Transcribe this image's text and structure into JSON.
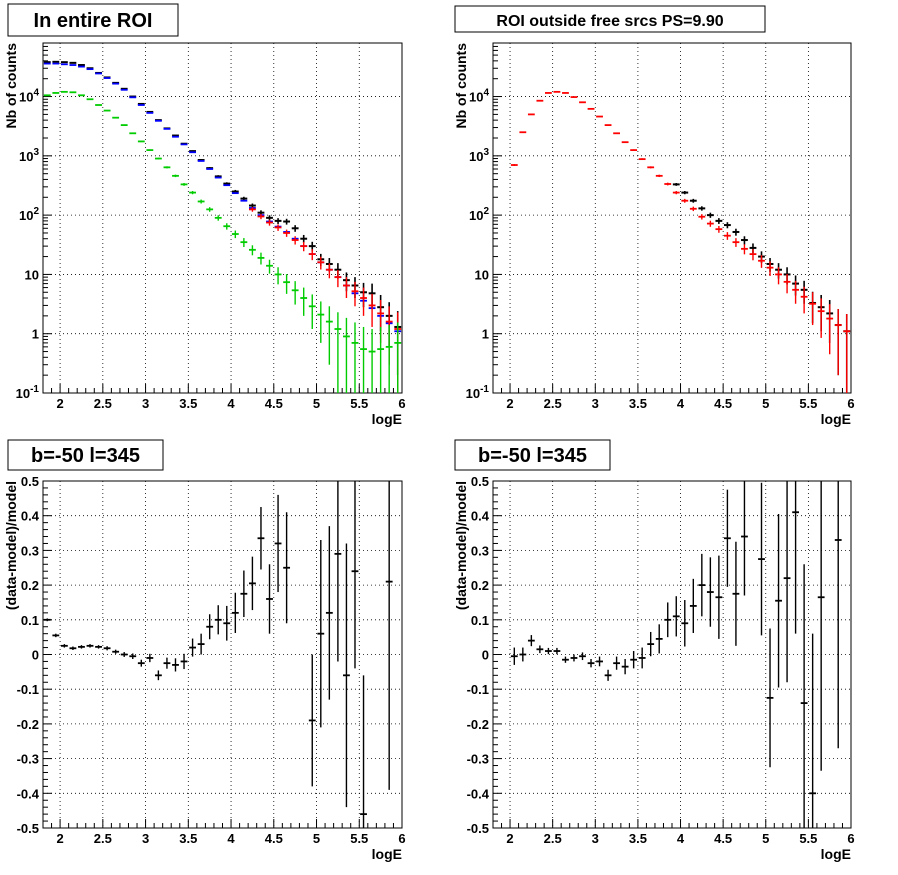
{
  "chart_data": [
    {
      "type": "scatter",
      "title": "In entire ROI",
      "xlabel": "logE",
      "ylabel": "Nb of counts",
      "xlim": [
        1.8,
        6.0
      ],
      "ylim": [
        0.1,
        80000
      ],
      "yscale": "log",
      "grid": true,
      "xticks": [
        "2",
        "2.5",
        "3",
        "3.5",
        "4",
        "4.5",
        "5",
        "5.5",
        "6"
      ],
      "yticks": [
        "10^-1",
        "1",
        "10",
        "10^2",
        "10^3",
        "10^4"
      ],
      "series": [
        {
          "color": "#000000",
          "x": [
            1.85,
            1.95,
            2.05,
            2.15,
            2.25,
            2.35,
            2.45,
            2.55,
            2.65,
            2.75,
            2.85,
            2.95,
            3.05,
            3.15,
            3.25,
            3.35,
            3.45,
            3.55,
            3.65,
            3.75,
            3.85,
            3.95,
            4.05,
            4.15,
            4.25,
            4.35,
            4.45,
            4.55,
            4.65,
            4.75,
            4.85,
            4.95,
            5.05,
            5.15,
            5.25,
            5.35,
            5.45,
            5.55,
            5.65,
            5.75,
            5.85,
            5.95
          ],
          "y": [
            38000,
            38500,
            38000,
            37000,
            34000,
            30000,
            25000,
            21000,
            17000,
            13500,
            10000,
            7500,
            5500,
            4000,
            2900,
            2200,
            1600,
            1200,
            850,
            620,
            450,
            340,
            250,
            190,
            145,
            110,
            90,
            80,
            78,
            60,
            40,
            30,
            18,
            15,
            12,
            8,
            6.5,
            5,
            4.8,
            2.8,
            2,
            1.3
          ],
          "err": [
            190,
            195,
            195,
            190,
            180,
            170,
            155,
            145,
            130,
            115,
            100,
            85,
            75,
            63,
            54,
            47,
            40,
            35,
            29,
            25,
            21,
            18,
            16,
            14,
            12,
            10.5,
            9.5,
            9,
            8.8,
            7.7,
            6.3,
            5.5,
            4.2,
            3.9,
            3.5,
            2.8,
            2.5,
            2.2,
            2.2,
            1.7,
            1.4,
            1.1
          ]
        },
        {
          "color": "#0000ff",
          "x": [
            1.85,
            1.95,
            2.05,
            2.15,
            2.25,
            2.35,
            2.45,
            2.55,
            2.65,
            2.75,
            2.85,
            2.95,
            3.05,
            3.15,
            3.25,
            3.35,
            3.45,
            3.55,
            3.65,
            3.75,
            3.85,
            3.95,
            4.05,
            4.15,
            4.25,
            4.35,
            4.45,
            4.55,
            4.65,
            4.75,
            4.85,
            4.95,
            5.05,
            5.15,
            5.25,
            5.35,
            5.45,
            5.55,
            5.65,
            5.75,
            5.85,
            5.95
          ],
          "y": [
            36000,
            36000,
            35000,
            34000,
            32000,
            29000,
            24500,
            20500,
            16500,
            13000,
            9700,
            7200,
            5300,
            3900,
            2850,
            2100,
            1560,
            1150,
            820,
            600,
            430,
            320,
            235,
            175,
            132,
            100,
            78,
            64,
            52,
            40,
            30,
            22,
            16,
            12,
            9,
            6.5,
            4.8,
            3.6,
            2.7,
            2,
            1.5,
            1.1
          ]
        },
        {
          "color": "#ff0000",
          "x": [
            4.25,
            4.35,
            4.45,
            4.55,
            4.65,
            4.75,
            4.85,
            4.95,
            5.05,
            5.15,
            5.25,
            5.35,
            5.45,
            5.55,
            5.65,
            5.75,
            5.85,
            5.95
          ],
          "y": [
            125,
            95,
            75,
            62,
            50,
            38,
            30,
            22,
            16,
            12,
            9,
            6.5,
            5.2,
            4,
            3,
            2.2,
            1.6,
            1.2
          ],
          "err": [
            11,
            9.5,
            8.6,
            7.8,
            7,
            6.1,
            5.4,
            4.6,
            3.9,
            3.4,
            2.9,
            2.5,
            2.3,
            2,
            1.7,
            1.5,
            1.3,
            1.1
          ]
        },
        {
          "color": "#00cc00",
          "x": [
            1.85,
            1.95,
            2.05,
            2.15,
            2.25,
            2.35,
            2.45,
            2.55,
            2.65,
            2.75,
            2.85,
            2.95,
            3.05,
            3.15,
            3.25,
            3.35,
            3.45,
            3.55,
            3.65,
            3.75,
            3.85,
            3.95,
            4.05,
            4.15,
            4.25,
            4.35,
            4.45,
            4.55,
            4.65,
            4.75,
            4.85,
            4.95,
            5.05,
            5.15,
            5.25,
            5.35,
            5.45,
            5.55,
            5.65,
            5.75,
            5.85,
            5.95
          ],
          "y": [
            10500,
            11500,
            12000,
            11800,
            10500,
            9000,
            7200,
            5800,
            4400,
            3300,
            2400,
            1750,
            1250,
            900,
            640,
            460,
            330,
            240,
            170,
            125,
            90,
            65,
            48,
            35,
            26,
            19,
            14,
            10,
            7.4,
            5.4,
            4,
            2.9,
            2.1,
            1.6,
            1.2,
            0.9,
            0.7,
            0.55,
            0.5,
            0.55,
            0.6,
            0.7
          ],
          "err": [
            110,
            115,
            115,
            110,
            100,
            95,
            85,
            75,
            65,
            58,
            50,
            42,
            36,
            30,
            26,
            22,
            18,
            15,
            13,
            11,
            9.5,
            8,
            7,
            6,
            5,
            4.3,
            3.7,
            3.2,
            2.7,
            2.3,
            2,
            1.7,
            1.4,
            1.3,
            1.1,
            0.95,
            0.85,
            0.75,
            0.7,
            0.75,
            0.8,
            0.85
          ]
        }
      ]
    },
    {
      "type": "scatter",
      "title": "ROI outside free srcs PS=9.90",
      "xlabel": "logE",
      "ylabel": "Nb of counts",
      "xlim": [
        1.8,
        6.0
      ],
      "ylim": [
        0.1,
        80000
      ],
      "yscale": "log",
      "grid": true,
      "xticks": [
        "2",
        "2.5",
        "3",
        "3.5",
        "4",
        "4.5",
        "5",
        "5.5",
        "6"
      ],
      "yticks": [
        "10^-1",
        "1",
        "10",
        "10^2",
        "10^3",
        "10^4"
      ],
      "series": [
        {
          "color": "#000000",
          "x": [
            3.95,
            4.05,
            4.15,
            4.25,
            4.35,
            4.45,
            4.55,
            4.65,
            4.75,
            4.85,
            4.95,
            5.05,
            5.15,
            5.25,
            5.35,
            5.45,
            5.55,
            5.65,
            5.75,
            5.85,
            5.95
          ],
          "y": [
            330,
            240,
            175,
            130,
            100,
            80,
            68,
            52,
            38,
            28,
            20,
            15,
            12,
            10,
            7,
            5.5,
            3.3,
            2.8,
            2.2,
            1.4,
            1.1
          ],
          "err": [
            18,
            15,
            13,
            11,
            10,
            9,
            8,
            7,
            6,
            5.3,
            4.5,
            3.9,
            3.5,
            3.2,
            2.6,
            2.3,
            1.8,
            1.7,
            1.5,
            1.2,
            1.05
          ]
        },
        {
          "color": "#ff0000",
          "x": [
            2.05,
            2.15,
            2.25,
            2.35,
            2.45,
            2.55,
            2.65,
            2.75,
            2.85,
            2.95,
            3.05,
            3.15,
            3.25,
            3.35,
            3.45,
            3.55,
            3.65,
            3.75,
            3.85,
            3.95,
            4.05,
            4.15,
            4.25,
            4.35,
            4.45,
            4.55,
            4.65,
            4.75,
            4.85,
            4.95,
            5.05,
            5.15,
            5.25,
            5.35,
            5.45,
            5.55,
            5.65,
            5.75,
            5.85,
            5.95
          ],
          "y": [
            700,
            2500,
            5000,
            8500,
            11500,
            12000,
            11500,
            9800,
            8000,
            6200,
            4600,
            3300,
            2400,
            1700,
            1250,
            880,
            640,
            460,
            335,
            240,
            175,
            128,
            94,
            72,
            58,
            45,
            35,
            27,
            22,
            17,
            13,
            10,
            7.5,
            5.5,
            4.2,
            3.2,
            2.4,
            1.8,
            1.4,
            1.1
          ],
          "err": [
            26,
            50,
            70,
            92,
            107,
            110,
            107,
            99,
            89,
            79,
            68,
            57,
            49,
            41,
            35,
            30,
            25,
            21,
            18,
            15,
            13,
            11,
            9.7,
            8.5,
            7.6,
            6.7,
            5.9,
            5.2,
            4.7,
            4.1,
            3.6,
            3.2,
            2.7,
            2.3,
            2,
            1.8,
            1.55,
            1.35,
            1.2,
            1.05
          ]
        }
      ]
    },
    {
      "type": "scatter",
      "title": "b=-50 l=345",
      "xlabel": "logE",
      "ylabel": "(data-model)/model",
      "xlim": [
        1.8,
        6.0
      ],
      "ylim": [
        -0.5,
        0.5
      ],
      "grid": true,
      "xticks": [
        "2",
        "2.5",
        "3",
        "3.5",
        "4",
        "4.5",
        "5",
        "5.5",
        "6"
      ],
      "yticks": [
        "-0.5",
        "-0.4",
        "-0.3",
        "-0.2",
        "-0.1",
        "0",
        "0.1",
        "0.2",
        "0.3",
        "0.4",
        "0.5"
      ],
      "series": [
        {
          "color": "#000000",
          "x": [
            1.85,
            1.95,
            2.05,
            2.15,
            2.25,
            2.35,
            2.45,
            2.55,
            2.65,
            2.75,
            2.85,
            2.95,
            3.05,
            3.15,
            3.25,
            3.35,
            3.45,
            3.55,
            3.65,
            3.75,
            3.85,
            3.95,
            4.05,
            4.15,
            4.25,
            4.35,
            4.45,
            4.55,
            4.65,
            4.75,
            4.85,
            4.95,
            5.05,
            5.15,
            5.25,
            5.35,
            5.45,
            5.55,
            5.65,
            5.75,
            5.85,
            5.95
          ],
          "y": [
            0.1,
            0.055,
            0.025,
            0.018,
            0.022,
            0.025,
            0.022,
            0.018,
            0.008,
            0.0,
            -0.005,
            -0.025,
            -0.01,
            -0.06,
            -0.025,
            -0.03,
            -0.02,
            0.02,
            0.03,
            0.08,
            0.1,
            0.09,
            0.12,
            0.175,
            0.205,
            0.335,
            0.16,
            0.32,
            0.25,
            null,
            null,
            -0.19,
            0.06,
            0.12,
            0.29,
            -0.06,
            0.24,
            -0.46,
            null,
            null,
            0.21,
            null
          ],
          "err": [
            0.004,
            0.005,
            0.005,
            0.005,
            0.005,
            0.005,
            0.005,
            0.006,
            0.006,
            0.007,
            0.008,
            0.01,
            0.012,
            0.014,
            0.016,
            0.019,
            0.022,
            0.026,
            0.03,
            0.036,
            0.042,
            0.05,
            0.058,
            0.067,
            0.077,
            0.09,
            0.1,
            0.14,
            0.16,
            0,
            0,
            0.19,
            0.27,
            0.25,
            0.31,
            0.38,
            0.28,
            0.4,
            0,
            0,
            0.6,
            0
          ]
        }
      ]
    },
    {
      "type": "scatter",
      "title": "b=-50 l=345",
      "xlabel": "logE",
      "ylabel": "(data-model)/model",
      "xlim": [
        1.8,
        6.0
      ],
      "ylim": [
        -0.5,
        0.5
      ],
      "grid": true,
      "xticks": [
        "2",
        "2.5",
        "3",
        "3.5",
        "4",
        "4.5",
        "5",
        "5.5",
        "6"
      ],
      "yticks": [
        "-0.5",
        "-0.4",
        "-0.3",
        "-0.2",
        "-0.1",
        "0",
        "0.1",
        "0.2",
        "0.3",
        "0.4",
        "0.5"
      ],
      "series": [
        {
          "color": "#000000",
          "x": [
            2.05,
            2.15,
            2.25,
            2.35,
            2.45,
            2.55,
            2.65,
            2.75,
            2.85,
            2.95,
            3.05,
            3.15,
            3.25,
            3.35,
            3.45,
            3.55,
            3.65,
            3.75,
            3.85,
            3.95,
            4.05,
            4.15,
            4.25,
            4.35,
            4.45,
            4.55,
            4.65,
            4.75,
            4.85,
            4.95,
            5.05,
            5.15,
            5.25,
            5.35,
            5.45,
            5.55,
            5.65,
            5.75,
            5.85,
            5.95
          ],
          "y": [
            -0.005,
            0.0,
            0.04,
            0.015,
            0.01,
            0.01,
            -0.015,
            -0.01,
            -0.005,
            -0.025,
            -0.02,
            -0.06,
            -0.025,
            -0.035,
            -0.015,
            -0.01,
            0.03,
            0.045,
            0.1,
            0.11,
            0.09,
            0.14,
            0.2,
            0.18,
            0.165,
            0.335,
            0.175,
            0.34,
            null,
            0.275,
            -0.125,
            0.155,
            0.22,
            0.41,
            -0.14,
            -0.4,
            0.165,
            null,
            0.33,
            null
          ],
          "err": [
            0.025,
            0.02,
            0.016,
            0.011,
            0.009,
            0.009,
            0.009,
            0.01,
            0.011,
            0.012,
            0.014,
            0.016,
            0.019,
            0.022,
            0.025,
            0.03,
            0.035,
            0.042,
            0.05,
            0.058,
            0.067,
            0.078,
            0.09,
            0.1,
            0.12,
            0.14,
            0.15,
            0.17,
            0,
            0.22,
            0.2,
            0.25,
            0.3,
            0.35,
            0.4,
            0.46,
            0.5,
            0,
            0.6,
            0
          ]
        }
      ]
    }
  ]
}
